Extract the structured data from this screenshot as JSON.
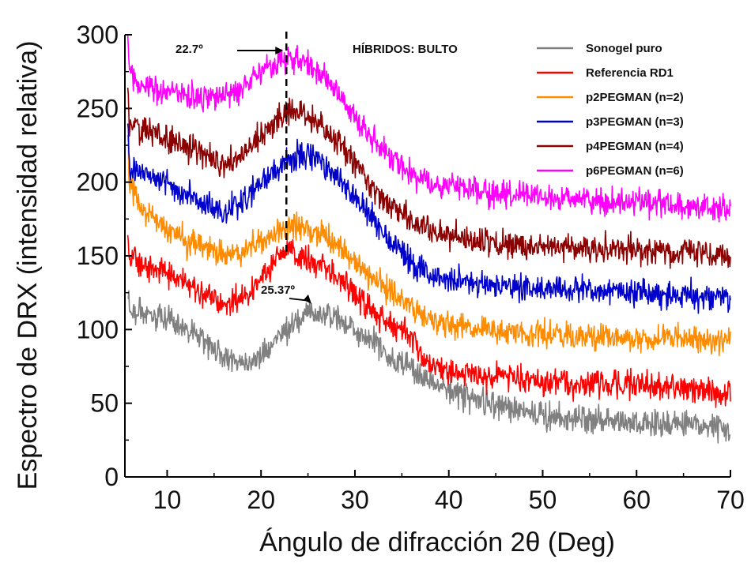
{
  "chart_data": {
    "type": "line",
    "title": "HÍBRIDOS: BULTO",
    "xlabel": "Ángulo de difracción 2θ (Deg)",
    "ylabel": "Espectro de DRX (intensidad relativa)",
    "xlim": [
      5.5,
      70
    ],
    "ylim": [
      0,
      300
    ],
    "xticks": [
      10,
      20,
      30,
      40,
      50,
      60,
      70
    ],
    "yticks": [
      0,
      50,
      100,
      150,
      200,
      250,
      300
    ],
    "grid": false,
    "legend_position": "top-right",
    "series": [
      {
        "name": "Sonogel puro",
        "color": "#808080",
        "x": [
          5.8,
          6,
          8,
          10,
          12,
          14,
          16,
          18,
          20,
          22,
          24,
          25.4,
          26,
          28,
          30,
          32,
          34,
          36,
          38,
          40,
          45,
          50,
          55,
          60,
          65,
          70
        ],
        "y": [
          125,
          115,
          110,
          106,
          101,
          93,
          82,
          77,
          82,
          95,
          106,
          112,
          111,
          108,
          101,
          91,
          81,
          73,
          65,
          58,
          49,
          42,
          39,
          37,
          35,
          32
        ]
      },
      {
        "name": "Referencia RD1",
        "color": "#ff0000",
        "x": [
          5.8,
          6,
          8,
          10,
          12,
          14,
          16,
          18,
          20,
          22,
          23,
          24,
          26,
          28,
          30,
          32,
          34,
          36,
          37.5,
          38,
          40,
          45,
          50,
          55,
          60,
          65,
          70
        ],
        "y": [
          168,
          148,
          143,
          138,
          133,
          125,
          118,
          120,
          133,
          150,
          156,
          152,
          145,
          137,
          125,
          112,
          103,
          95,
          80,
          76,
          71,
          68,
          65,
          63,
          62,
          60,
          57
        ]
      },
      {
        "name": "p2PEGMAN (n=2)",
        "color": "#ff8c00",
        "x": [
          5.8,
          6,
          7,
          8,
          10,
          12,
          14,
          16,
          18,
          20,
          22,
          23,
          24,
          26,
          28,
          30,
          32,
          34,
          36,
          38,
          40,
          45,
          50,
          55,
          60,
          65,
          70
        ],
        "y": [
          230,
          200,
          185,
          178,
          168,
          160,
          155,
          150,
          153,
          160,
          168,
          172,
          170,
          165,
          158,
          147,
          133,
          125,
          115,
          107,
          103,
          99,
          97,
          95,
          94,
          93,
          92
        ]
      },
      {
        "name": "p3PEGMAN (n=3)",
        "color": "#0000cc",
        "x": [
          5.8,
          6,
          8,
          10,
          12,
          14,
          16,
          18,
          20,
          22,
          24,
          26,
          28,
          30,
          32,
          34,
          36,
          38,
          40,
          45,
          50,
          55,
          60,
          65,
          70
        ],
        "y": [
          240,
          210,
          205,
          200,
          192,
          185,
          180,
          186,
          198,
          210,
          220,
          216,
          205,
          190,
          173,
          158,
          145,
          137,
          133,
          130,
          128,
          127,
          125,
          124,
          122
        ]
      },
      {
        "name": "p4PEGMAN (n=4)",
        "color": "#8b0000",
        "x": [
          5.8,
          6,
          8,
          10,
          12,
          14,
          16,
          18,
          20,
          22,
          23,
          24,
          26,
          28,
          30,
          32,
          34,
          36,
          38,
          40,
          45,
          50,
          55,
          60,
          65,
          70
        ],
        "y": [
          262,
          240,
          234,
          230,
          224,
          218,
          212,
          218,
          232,
          245,
          250,
          248,
          240,
          228,
          212,
          196,
          183,
          173,
          167,
          163,
          158,
          156,
          155,
          154,
          152,
          150
        ]
      },
      {
        "name": "p6PEGMAN (n=6)",
        "color": "#ff00ff",
        "x": [
          5.8,
          6,
          7,
          8,
          10,
          12,
          14,
          16,
          18,
          20,
          22,
          24,
          26,
          28,
          30,
          32,
          34,
          36,
          38,
          40,
          45,
          50,
          55,
          60,
          65,
          70
        ],
        "y": [
          300,
          275,
          268,
          265,
          262,
          260,
          257,
          258,
          265,
          277,
          282,
          283,
          276,
          262,
          245,
          228,
          215,
          206,
          200,
          197,
          193,
          190,
          188,
          186,
          184,
          182
        ]
      }
    ],
    "vline_x": 22.7,
    "annotations": [
      {
        "text": "22.7º",
        "points_to_x": 22.7,
        "points_to_y": 292
      },
      {
        "text": "25.37º",
        "points_to_x": 25.37,
        "points_to_y": 112
      }
    ]
  }
}
